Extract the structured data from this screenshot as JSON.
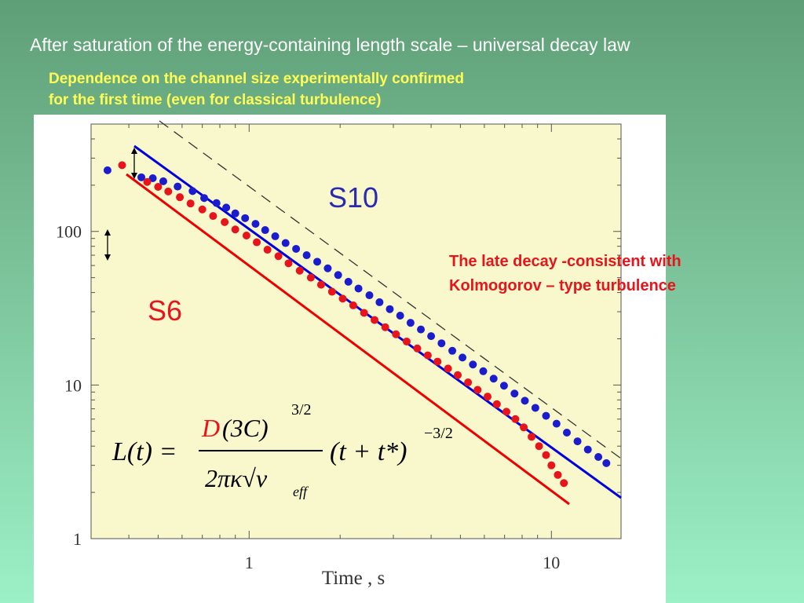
{
  "slide": {
    "title": "After saturation of the energy-containing length scale – universal decay law",
    "subtitle_lines": [
      "Dependence on the channel size experimentally confirmed",
      "for the first time (even for classical turbulence)"
    ],
    "note_lines": [
      "The late decay -consistent with",
      "Kolmogorov – type turbulence"
    ]
  },
  "formula": {
    "lhs": "L(t) =",
    "numerator_D": "D",
    "numerator_rest": "(3C)",
    "numerator_exp": "3/2",
    "denominator": "2πκ√ν",
    "denominator_sub": "eff",
    "factor": "(t + t*)",
    "factor_exp": "−3/2"
  },
  "colors": {
    "plot_bg": "#f8f8cc",
    "s10": "#1c1ccf",
    "s6": "#e8141c",
    "s10_fit": "#0000e0",
    "s6_fit": "#ee0000"
  },
  "chart_data": {
    "type": "scatter",
    "xlabel": "Time , s",
    "ylabel": "",
    "xscale": "log",
    "yscale": "log",
    "xlim": [
      0.3,
      17
    ],
    "ylim": [
      1,
      500
    ],
    "x_ticks": [
      {
        "value": 1,
        "label": "1"
      },
      {
        "value": 10,
        "label": "10"
      }
    ],
    "y_ticks": [
      {
        "value": 1,
        "label": "1"
      },
      {
        "value": 10,
        "label": "10"
      },
      {
        "value": 100,
        "label": "100"
      }
    ],
    "series": [
      {
        "name": "S10",
        "color": "#1c1ccf",
        "x": [
          0.34,
          0.44,
          0.48,
          0.52,
          0.58,
          0.65,
          0.71,
          0.78,
          0.84,
          0.9,
          0.97,
          1.05,
          1.13,
          1.22,
          1.32,
          1.43,
          1.55,
          1.68,
          1.82,
          1.97,
          2.13,
          2.3,
          2.5,
          2.7,
          2.92,
          3.16,
          3.42,
          3.7,
          4.0,
          4.33,
          4.7,
          5.08,
          5.5,
          5.95,
          6.44,
          6.97,
          7.55,
          8.17,
          8.85,
          9.6,
          10.4,
          11.25,
          12.2,
          13.2,
          14.3,
          15.2
        ],
        "y": [
          250,
          225,
          222,
          212,
          196,
          183,
          165,
          153,
          143,
          131,
          122,
          112,
          102,
          93,
          84,
          77,
          70,
          63.5,
          57.5,
          52,
          47,
          42.5,
          38.4,
          34.6,
          31.2,
          28.3,
          25.4,
          23,
          20.8,
          18.7,
          16.7,
          15.1,
          13.6,
          12.3,
          11,
          9.9,
          8.8,
          7.9,
          7.1,
          6.3,
          5.6,
          4.9,
          4.3,
          3.8,
          3.4,
          3.1
        ]
      },
      {
        "name": "S6",
        "color": "#e8141c",
        "x": [
          0.38,
          0.46,
          0.5,
          0.54,
          0.59,
          0.64,
          0.7,
          0.76,
          0.83,
          0.9,
          0.98,
          1.06,
          1.15,
          1.25,
          1.35,
          1.47,
          1.6,
          1.73,
          1.88,
          2.04,
          2.21,
          2.4,
          2.6,
          2.82,
          3.06,
          3.32,
          3.6,
          3.9,
          4.2,
          4.55,
          4.9,
          5.3,
          5.7,
          6.15,
          6.6,
          7.1,
          7.6,
          8.1,
          8.6,
          9.1,
          9.6,
          10.0,
          10.5,
          11.0
        ],
        "y": [
          270,
          210,
          195,
          182,
          167,
          152,
          139,
          126,
          115,
          103,
          94,
          85,
          76,
          69,
          62,
          55.5,
          50,
          45,
          40.5,
          36.5,
          33,
          29.5,
          26.5,
          23.8,
          21.4,
          19.2,
          17.3,
          15.6,
          14.2,
          12.8,
          11.6,
          10.4,
          9.3,
          8.4,
          7.5,
          6.7,
          6.0,
          5.3,
          4.6,
          4.0,
          3.5,
          3.0,
          2.6,
          2.3
        ]
      }
    ],
    "annotations": [
      {
        "text": "S10",
        "color": "#2a2ab0"
      },
      {
        "text": "S6",
        "color": "#e8141c"
      }
    ]
  }
}
